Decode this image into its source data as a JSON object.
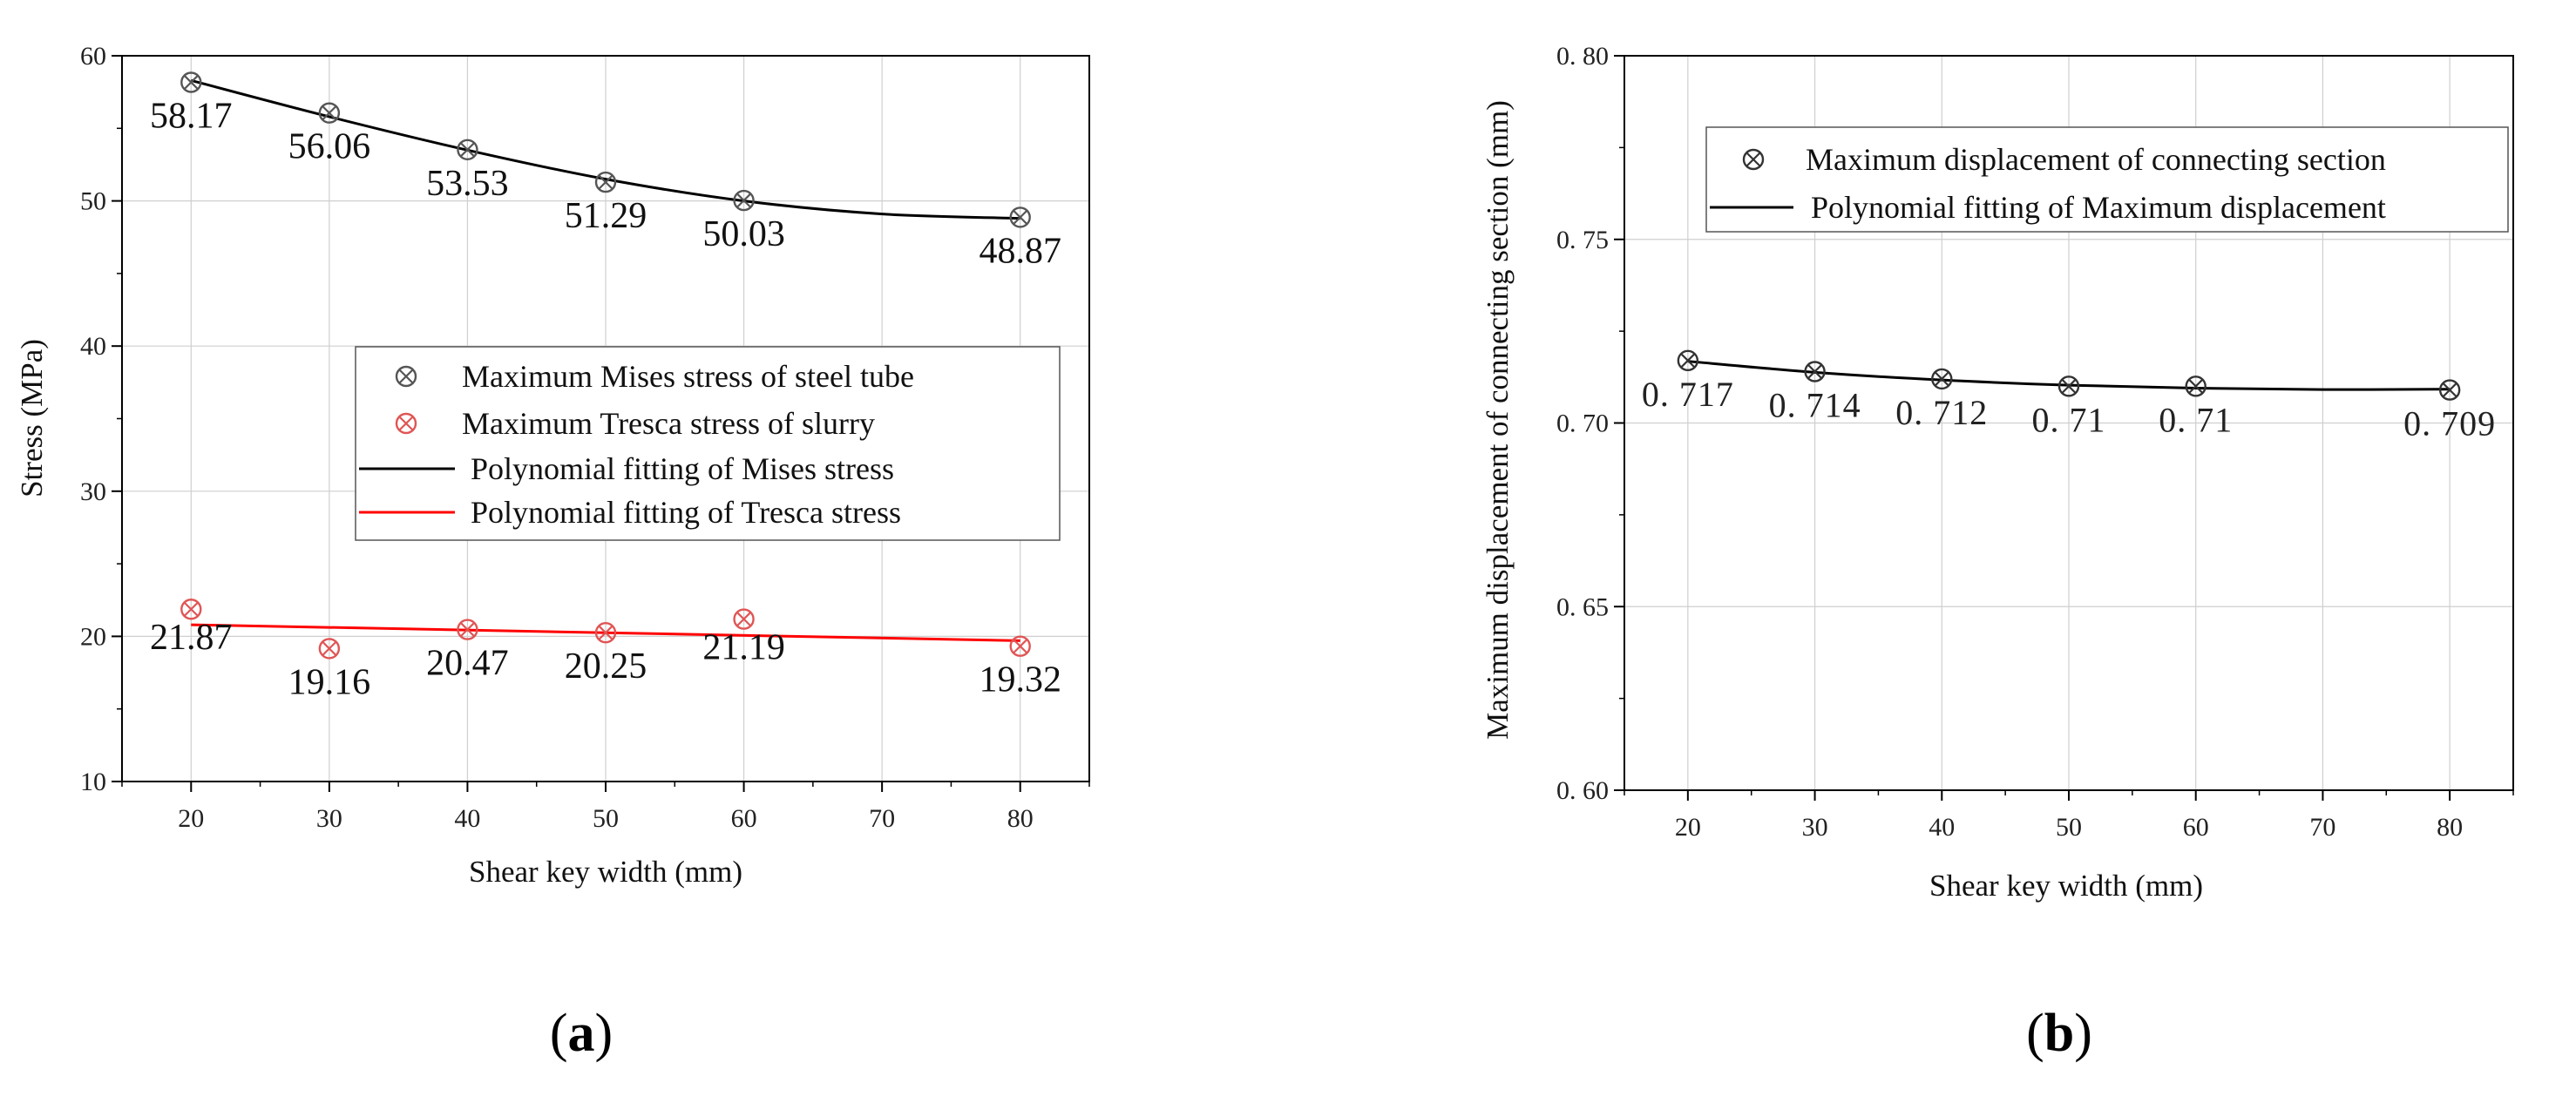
{
  "chart_data": [
    {
      "panel": "(a)",
      "type": "scatter",
      "xlabel": "Shear key width (mm)",
      "ylabel": "Stress (MPa)",
      "xlim": [
        15,
        85
      ],
      "ylim": [
        10,
        60
      ],
      "xticks": [
        "20",
        "30",
        "40",
        "50",
        "60",
        "70",
        "80"
      ],
      "yticks": [
        "10",
        "20",
        "30",
        "40",
        "50",
        "60"
      ],
      "grid": true,
      "legend_position": "center-right",
      "series": [
        {
          "name": "Maximum Mises stress of steel tube",
          "marker": "circle-x",
          "color": "#555555",
          "x": [
            20,
            30,
            40,
            50,
            60,
            80
          ],
          "y": [
            58.17,
            56.06,
            53.53,
            51.29,
            50.03,
            48.87
          ],
          "labels": [
            "58.17",
            "56.06",
            "53.53",
            "51.29",
            "50.03",
            "48.87"
          ]
        },
        {
          "name": "Maximum Tresca stress of slurry",
          "marker": "circle-x",
          "color": "#e05555",
          "x": [
            20,
            30,
            40,
            50,
            60,
            80
          ],
          "y": [
            21.87,
            19.16,
            20.47,
            20.25,
            21.19,
            19.32
          ],
          "labels": [
            "21.87",
            "19.16",
            "20.47",
            "20.25",
            "21.19",
            "19.32"
          ]
        },
        {
          "name": "Polynomial fitting of Mises stress",
          "line": true,
          "color": "#000000",
          "x": [
            20,
            30,
            40,
            50,
            60,
            70,
            80
          ],
          "y": [
            58.3,
            55.8,
            53.5,
            51.5,
            50.0,
            49.1,
            48.8
          ]
        },
        {
          "name": "Polynomial fitting of Tresca stress",
          "line": true,
          "color": "#ff0000",
          "x": [
            20,
            80
          ],
          "y": [
            20.8,
            19.7
          ]
        }
      ]
    },
    {
      "panel": "(b)",
      "type": "scatter",
      "xlabel": "Shear key width (mm)",
      "ylabel": "Maximum displacement of connecting section (mm)",
      "xlim": [
        15,
        85
      ],
      "ylim": [
        0.6,
        0.8
      ],
      "xticks": [
        "20",
        "30",
        "40",
        "50",
        "60",
        "70",
        "80"
      ],
      "yticks": [
        "0. 60",
        "0. 65",
        "0. 70",
        "0. 75",
        "0. 80"
      ],
      "grid": true,
      "legend_position": "top-right",
      "series": [
        {
          "name": "Maximum displacement of connecting section",
          "marker": "circle-x",
          "color": "#333333",
          "x": [
            20,
            30,
            40,
            50,
            60,
            80
          ],
          "y": [
            0.717,
            0.714,
            0.712,
            0.71,
            0.71,
            0.709
          ],
          "labels": [
            "0. 717",
            "0. 714",
            "0. 712",
            "0. 71",
            "0. 71",
            "0. 709"
          ]
        },
        {
          "name": "Polynomial fitting of Maximum displacement",
          "line": true,
          "color": "#000000",
          "x": [
            20,
            30,
            40,
            50,
            60,
            70,
            80
          ],
          "y": [
            0.7168,
            0.7138,
            0.7117,
            0.7103,
            0.7095,
            0.7091,
            0.7092
          ]
        }
      ]
    }
  ],
  "captions": {
    "a_open": "(",
    "a_letter": "a",
    "a_close": ")",
    "b_open": "(",
    "b_letter": "b",
    "b_close": ")"
  }
}
